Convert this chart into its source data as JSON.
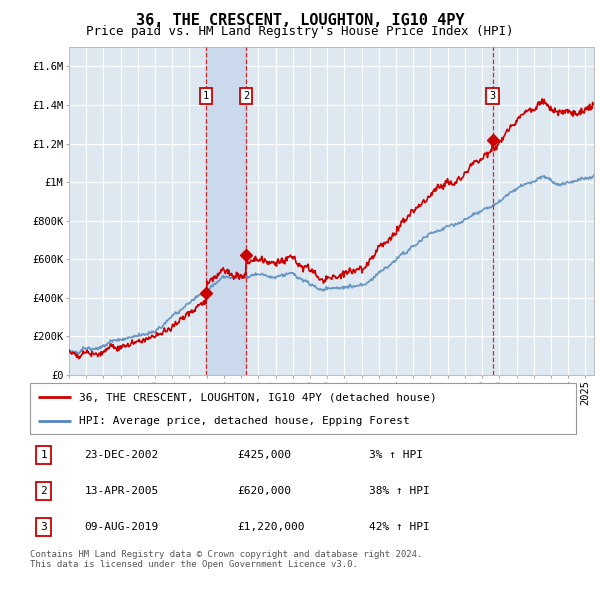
{
  "title": "36, THE CRESCENT, LOUGHTON, IG10 4PY",
  "subtitle": "Price paid vs. HM Land Registry's House Price Index (HPI)",
  "ylabel_ticks": [
    "£0",
    "£200K",
    "£400K",
    "£600K",
    "£800K",
    "£1M",
    "£1.2M",
    "£1.4M",
    "£1.6M"
  ],
  "ytick_vals": [
    0,
    200000,
    400000,
    600000,
    800000,
    1000000,
    1200000,
    1400000,
    1600000
  ],
  "ylim": [
    0,
    1700000
  ],
  "xlim_start": 1995.0,
  "xlim_end": 2025.5,
  "sale_year1": 2002.979,
  "sale_year2": 2005.292,
  "sale_year3": 2019.604,
  "sale_prices": [
    425000,
    620000,
    1220000
  ],
  "sale_labels": [
    "1",
    "2",
    "3"
  ],
  "legend_line1": "36, THE CRESCENT, LOUGHTON, IG10 4PY (detached house)",
  "legend_line2": "HPI: Average price, detached house, Epping Forest",
  "table_entries": [
    {
      "label": "1",
      "date": "23-DEC-2002",
      "price": "£425,000",
      "hpi": "3% ↑ HPI"
    },
    {
      "label": "2",
      "date": "13-APR-2005",
      "price": "£620,000",
      "hpi": "38% ↑ HPI"
    },
    {
      "label": "3",
      "date": "09-AUG-2019",
      "price": "£1,220,000",
      "hpi": "42% ↑ HPI"
    }
  ],
  "footer": "Contains HM Land Registry data © Crown copyright and database right 2024.\nThis data is licensed under the Open Government Licence v3.0.",
  "red_color": "#cc0000",
  "blue_color": "#5588bb",
  "bg_plot_color": "#dde8f0",
  "highlight_color": "#c8d8eb",
  "grid_color": "#ffffff",
  "title_fontsize": 11,
  "subtitle_fontsize": 9,
  "tick_fontsize": 7.5,
  "legend_fontsize": 8,
  "table_fontsize": 8,
  "footer_fontsize": 6.5
}
